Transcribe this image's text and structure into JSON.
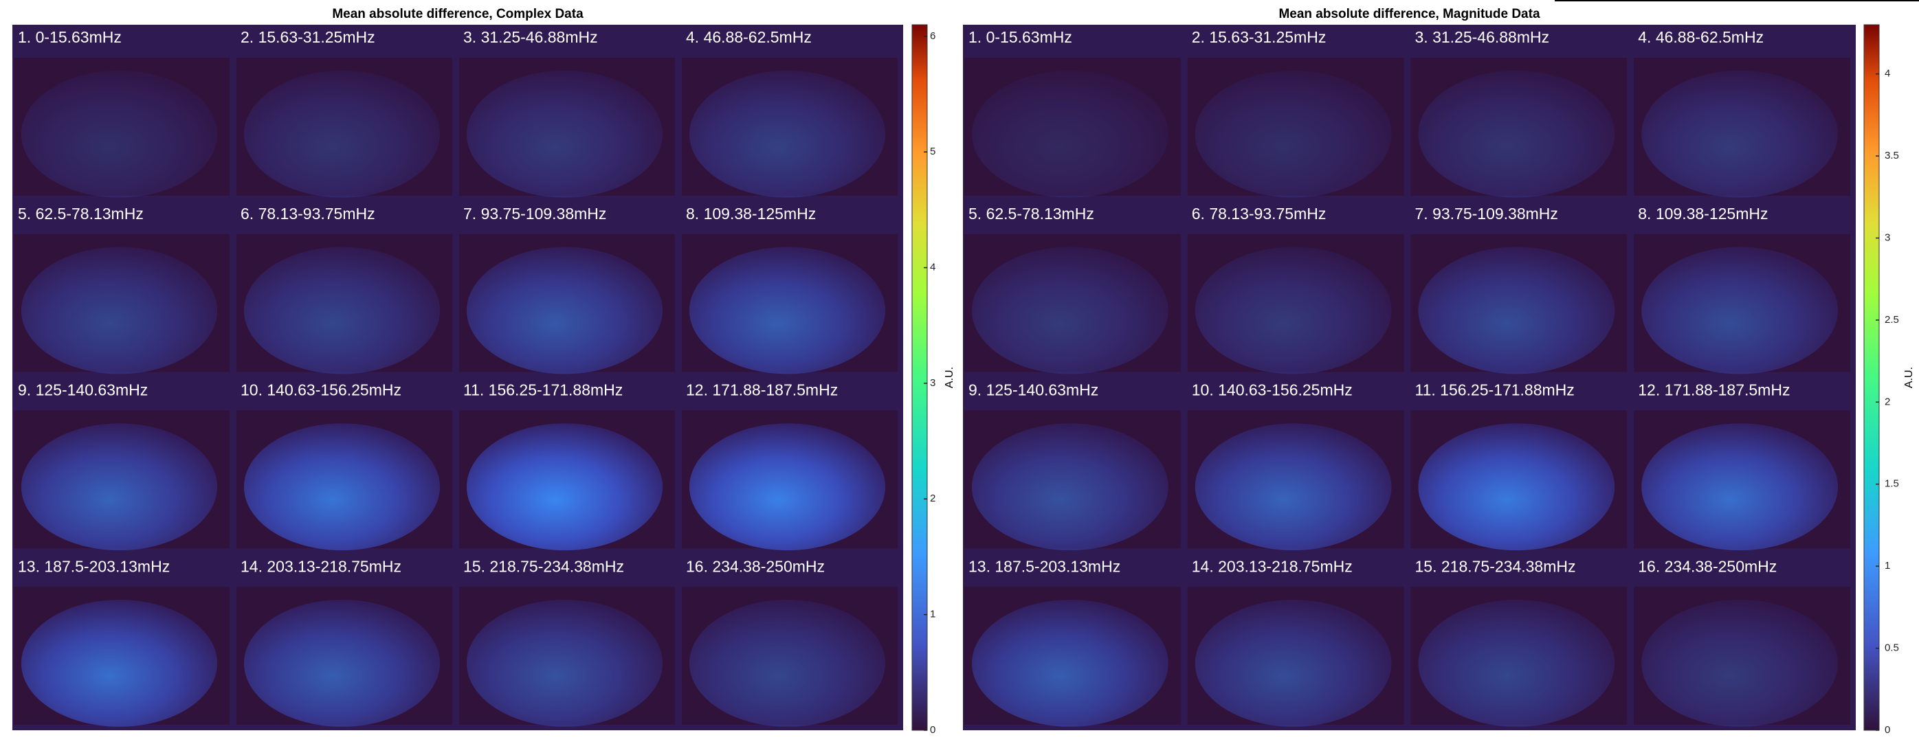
{
  "chart_data": [
    {
      "type": "image-grid",
      "title": "Mean absolute difference, Complex Data",
      "panels": [
        "1. 0-15.63mHz",
        "2. 15.63-31.25mHz",
        "3. 31.25-46.88mHz",
        "4. 46.88-62.5mHz",
        "5. 62.5-78.13mHz",
        "6. 78.13-93.75mHz",
        "7. 93.75-109.38mHz",
        "8. 109.38-125mHz",
        "9. 125-140.63mHz",
        "10. 140.63-156.25mHz",
        "11. 156.25-171.88mHz",
        "12. 171.88-187.5mHz",
        "13. 187.5-203.13mHz",
        "14. 203.13-218.75mHz",
        "15. 218.75-234.38mHz",
        "16. 234.38-250mHz"
      ],
      "colorbar_label": "A.U.",
      "ylim": [
        0,
        6.1
      ],
      "yticks": [
        0,
        1,
        2,
        3,
        4,
        5,
        6
      ]
    },
    {
      "type": "image-grid",
      "title": "Mean absolute difference, Magnitude Data",
      "panels": [
        "1. 0-15.63mHz",
        "2. 15.63-31.25mHz",
        "3. 31.25-46.88mHz",
        "4. 46.88-62.5mHz",
        "5. 62.5-78.13mHz",
        "6. 78.13-93.75mHz",
        "7. 93.75-109.38mHz",
        "8. 109.38-125mHz",
        "9. 125-140.63mHz",
        "10. 140.63-156.25mHz",
        "11. 156.25-171.88mHz",
        "12. 171.88-187.5mHz",
        "13. 187.5-203.13mHz",
        "14. 203.13-218.75mHz",
        "15. 218.75-234.38mHz",
        "16. 234.38-250mHz"
      ],
      "colorbar_label": "A.U.",
      "ylim": [
        0,
        4.3
      ],
      "yticks": [
        0,
        0.5,
        1,
        1.5,
        2,
        2.5,
        3,
        3.5,
        4
      ]
    }
  ]
}
